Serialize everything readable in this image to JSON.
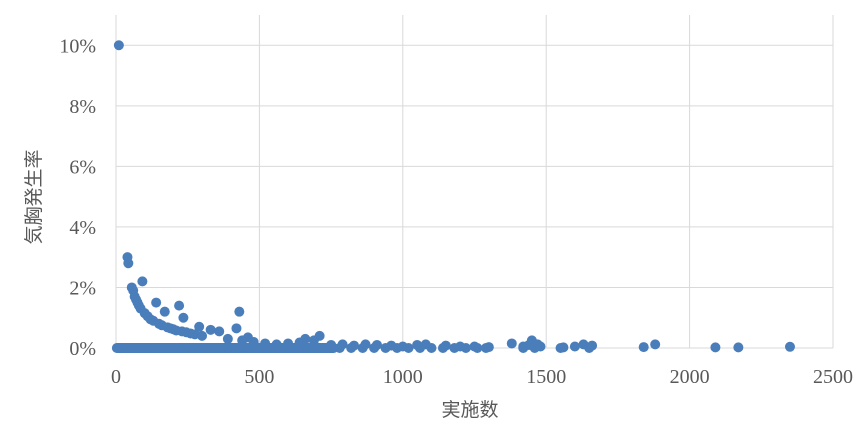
{
  "chart_data": {
    "type": "scatter",
    "title": "",
    "xlabel": "実施数",
    "ylabel": "気胸発生率",
    "xlim": [
      0,
      2500
    ],
    "ylim": [
      0,
      0.11
    ],
    "x_ticks": [
      0,
      500,
      1000,
      1500,
      2000,
      2500
    ],
    "x_tick_labels": [
      "0",
      "500",
      "1000",
      "1500",
      "2000",
      "2500"
    ],
    "y_ticks": [
      0,
      0.02,
      0.04,
      0.06,
      0.08,
      0.1
    ],
    "y_tick_labels": [
      "0%",
      "2%",
      "4%",
      "6%",
      "8%",
      "10%"
    ],
    "grid": "on",
    "legend": "none",
    "marker_color": "#4a7ebb",
    "series": [
      {
        "points": [
          [
            10,
            0.1
          ],
          [
            40,
            0.03
          ],
          [
            43,
            0.028
          ],
          [
            55,
            0.02
          ],
          [
            60,
            0.019
          ],
          [
            65,
            0.017
          ],
          [
            70,
            0.016
          ],
          [
            75,
            0.015
          ],
          [
            80,
            0.014
          ],
          [
            86,
            0.013
          ],
          [
            92,
            0.022
          ],
          [
            100,
            0.0115
          ],
          [
            110,
            0.0105
          ],
          [
            120,
            0.0095
          ],
          [
            130,
            0.009
          ],
          [
            140,
            0.015
          ],
          [
            150,
            0.008
          ],
          [
            160,
            0.0075
          ],
          [
            170,
            0.012
          ],
          [
            180,
            0.0068
          ],
          [
            190,
            0.0065
          ],
          [
            200,
            0.0062
          ],
          [
            210,
            0.0058
          ],
          [
            220,
            0.014
          ],
          [
            230,
            0.0055
          ],
          [
            235,
            0.01
          ],
          [
            245,
            0.0052
          ],
          [
            260,
            0.0048
          ],
          [
            275,
            0.0045
          ],
          [
            290,
            0.007
          ],
          [
            300,
            0.004
          ],
          [
            330,
            0.006
          ],
          [
            360,
            0.0055
          ],
          [
            390,
            0.003
          ],
          [
            420,
            0.0065
          ],
          [
            430,
            0.012
          ],
          [
            440,
            0.0025
          ],
          [
            460,
            0.0035
          ],
          [
            480,
            0.002
          ],
          [
            520,
            0.0015
          ],
          [
            560,
            0.0012
          ],
          [
            600,
            0.0015
          ],
          [
            640,
            0.0018
          ],
          [
            660,
            0.003
          ],
          [
            690,
            0.0025
          ],
          [
            710,
            0.004
          ],
          [
            750,
            0.001
          ],
          [
            790,
            0.0012
          ],
          [
            830,
            0.0008
          ],
          [
            870,
            0.0012
          ],
          [
            910,
            0.001
          ],
          [
            960,
            0.0008
          ],
          [
            1000,
            0.0005
          ],
          [
            1050,
            0.001
          ],
          [
            1080,
            0.0012
          ],
          [
            1150,
            0.0008
          ],
          [
            1200,
            0.0005
          ],
          [
            1250,
            0.0005
          ],
          [
            1300,
            0.0003
          ],
          [
            1380,
            0.0015
          ],
          [
            1420,
            0.0005
          ],
          [
            1440,
            0.001
          ],
          [
            1450,
            0.0025
          ],
          [
            1470,
            0.0012
          ],
          [
            1480,
            0.0005
          ],
          [
            1560,
            0.0002
          ],
          [
            1600,
            0.0005
          ],
          [
            1630,
            0.0012
          ],
          [
            1660,
            0.0008
          ],
          [
            1840,
            0.0003
          ],
          [
            1880,
            0.0012
          ],
          [
            2090,
            0.0002
          ],
          [
            2170,
            0.0002
          ],
          [
            2350,
            0.0004
          ]
        ],
        "zero_rate_x_range": [
          0,
          760
        ],
        "zero_rate_points": [
          [
            780,
            0
          ],
          [
            820,
            0
          ],
          [
            860,
            0
          ],
          [
            900,
            0
          ],
          [
            940,
            0
          ],
          [
            980,
            0
          ],
          [
            1020,
            0
          ],
          [
            1060,
            0
          ],
          [
            1100,
            0
          ],
          [
            1140,
            0
          ],
          [
            1180,
            0
          ],
          [
            1220,
            0
          ],
          [
            1260,
            0
          ],
          [
            1290,
            0
          ],
          [
            1420,
            0
          ],
          [
            1460,
            0
          ],
          [
            1550,
            0
          ],
          [
            1650,
            0
          ]
        ]
      }
    ]
  }
}
